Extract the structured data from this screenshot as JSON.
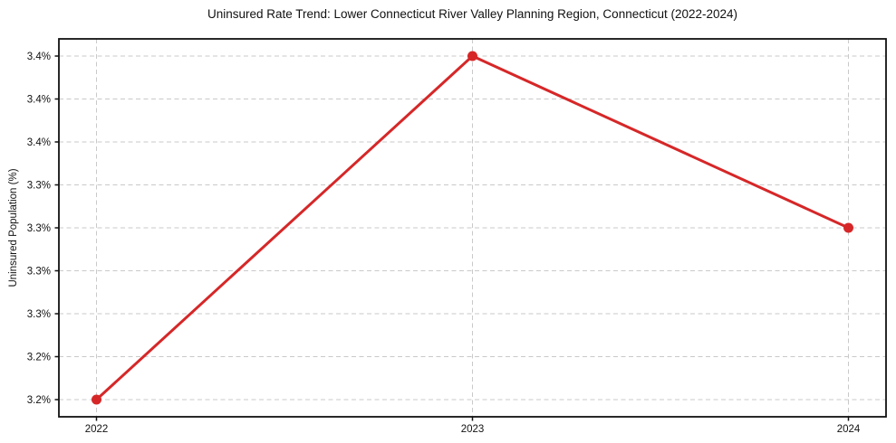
{
  "chart_data": {
    "type": "line",
    "title": "Uninsured Rate Trend: Lower Connecticut River Valley Planning Region, Connecticut (2022-2024)",
    "xlabel": "",
    "ylabel": "Uninsured Population (%)",
    "x": [
      2022,
      2023,
      2024
    ],
    "series": [
      {
        "name": "Uninsured rate",
        "values": [
          3.2,
          3.4,
          3.3
        ]
      }
    ],
    "xlim": [
      2021.9,
      2024.1
    ],
    "ylim": [
      3.19,
      3.41
    ],
    "xticks": [
      2022,
      2023,
      2024
    ],
    "xtick_labels": [
      "2022",
      "2023",
      "2024"
    ],
    "yticks": [
      3.2,
      3.225,
      3.25,
      3.275,
      3.3,
      3.325,
      3.35,
      3.375,
      3.4
    ],
    "ytick_labels": [
      "3.2%",
      "3.2%",
      "3.3%",
      "3.3%",
      "3.3%",
      "3.3%",
      "3.4%",
      "3.4%",
      "3.4%"
    ],
    "grid": true,
    "legend": false,
    "colors": {
      "line": "#d62728",
      "marker": "#d62728",
      "grid": "#c9c9c9",
      "spine": "#111111",
      "background": "#ffffff"
    }
  }
}
